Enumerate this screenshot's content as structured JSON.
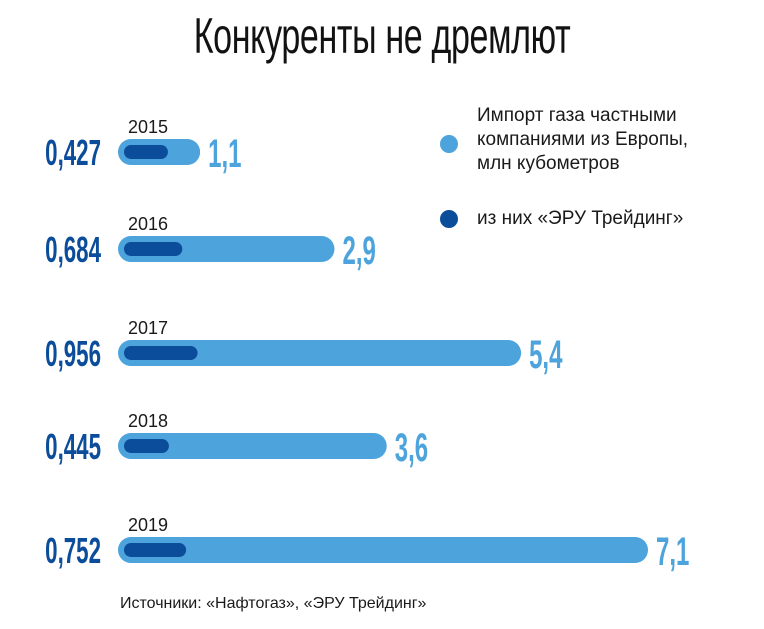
{
  "title": "Конкуренты не дремлют",
  "legend": {
    "total": {
      "lines": [
        "Импорт газа частными",
        "компаниями из Европы,",
        "млн кубометров"
      ],
      "color": "#4da3db"
    },
    "eru": {
      "label": "из них «ЭРУ Трейдинг»",
      "color": "#0b4d9a"
    }
  },
  "source": "Источники: «Нафтогаз», «ЭРУ Трейдинг»",
  "chart_data": {
    "type": "bar",
    "orientation": "horizontal",
    "categories": [
      "2015",
      "2016",
      "2017",
      "2018",
      "2019"
    ],
    "series": [
      {
        "name": "Импорт газа частными компаниями из Европы, млн кубометров",
        "values": [
          1.1,
          2.9,
          5.4,
          3.6,
          7.1
        ],
        "labels": [
          "1,1",
          "2,9",
          "5,4",
          "3,6",
          "7,1"
        ],
        "color": "#4da3db"
      },
      {
        "name": "из них «ЭРУ Трейдинг»",
        "values": [
          0.427,
          0.684,
          0.956,
          0.445,
          0.752
        ],
        "labels": [
          "0,427",
          "0,684",
          "0,956",
          "0,445",
          "0,752"
        ],
        "color": "#0b4d9a"
      }
    ],
    "xlim": [
      0,
      7.1
    ],
    "legend_position": "top-right",
    "grid": false
  }
}
